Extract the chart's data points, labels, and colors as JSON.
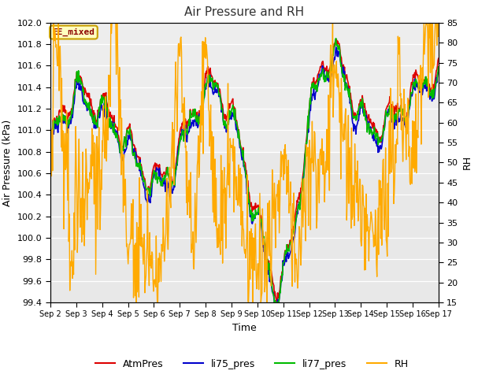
{
  "title": "Air Pressure and RH",
  "xlabel": "Time",
  "ylabel_left": "Air Pressure (kPa)",
  "ylabel_right": "RH",
  "ylim_left": [
    99.4,
    102.0
  ],
  "ylim_right": [
    15,
    85
  ],
  "yticks_left": [
    99.4,
    99.6,
    99.8,
    100.0,
    100.2,
    100.4,
    100.6,
    100.8,
    101.0,
    101.2,
    101.4,
    101.6,
    101.8,
    102.0
  ],
  "yticks_right": [
    15,
    20,
    25,
    30,
    35,
    40,
    45,
    50,
    55,
    60,
    65,
    70,
    75,
    80,
    85
  ],
  "bg_color": "#ffffff",
  "plot_bg": "#e8e8e8",
  "annotation_text": "EE_mixed",
  "annotation_bg": "#ffffc0",
  "annotation_border": "#c8a000",
  "colors": {
    "AtmPres": "#dd0000",
    "li75_pres": "#0000cc",
    "li77_pres": "#00bb00",
    "RH": "#ffaa00"
  },
  "legend_labels": [
    "AtmPres",
    "li75_pres",
    "li77_pres",
    "RH"
  ],
  "n_points": 720,
  "figsize": [
    6.4,
    4.8
  ],
  "dpi": 100
}
